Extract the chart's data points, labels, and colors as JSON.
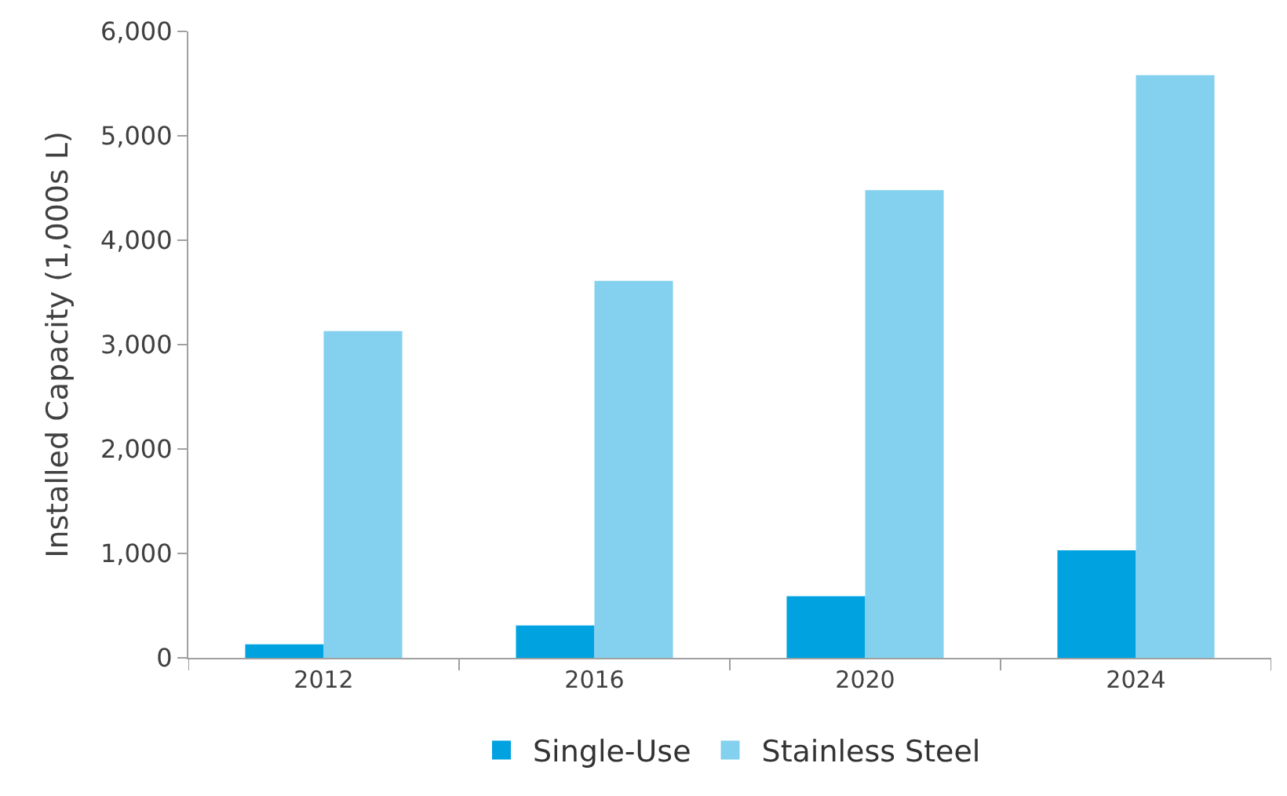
{
  "chart_data": {
    "type": "bar",
    "ylabel": "Installed Capacity (1,000s L)",
    "categories": [
      "2012",
      "2016",
      "2020",
      "2024"
    ],
    "series": [
      {
        "name": "Single-Use",
        "color": "#00a3e0",
        "values": [
          130,
          310,
          590,
          1030
        ]
      },
      {
        "name": "Stainless Steel",
        "color": "#83d0ef",
        "values": [
          3130,
          3610,
          4480,
          5580
        ]
      }
    ],
    "ylim": [
      0,
      6000
    ],
    "yticks": [
      {
        "value": 0,
        "label": "0"
      },
      {
        "value": 1000,
        "label": "1,000"
      },
      {
        "value": 2000,
        "label": "2,000"
      },
      {
        "value": 3000,
        "label": "3,000"
      },
      {
        "value": 4000,
        "label": "4,000"
      },
      {
        "value": 5000,
        "label": "5,000"
      },
      {
        "value": 6000,
        "label": "6,000"
      }
    ],
    "legend": "bottom"
  }
}
